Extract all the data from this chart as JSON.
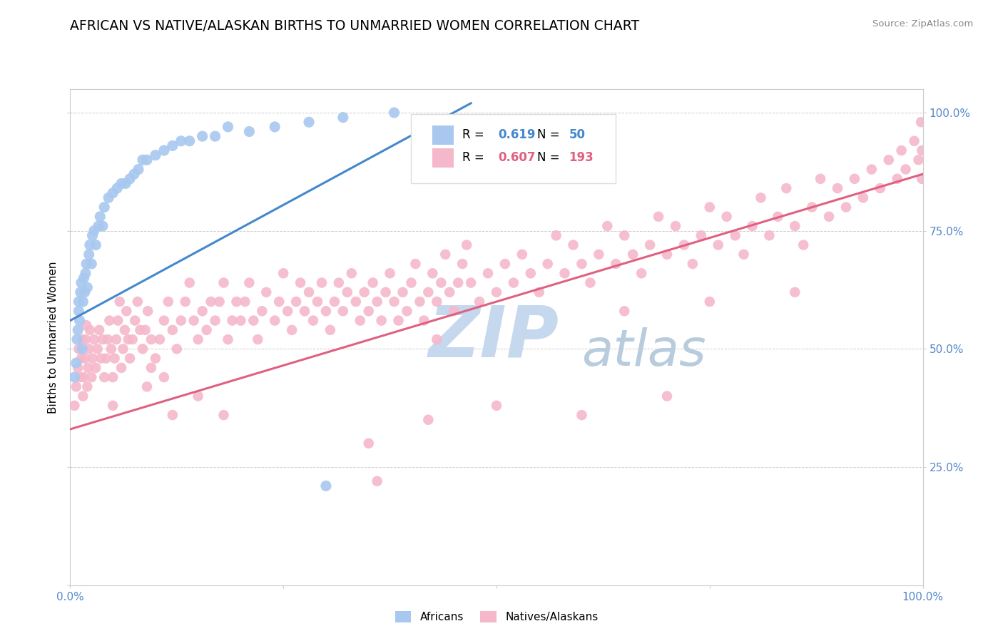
{
  "title": "AFRICAN VS NATIVE/ALASKAN BIRTHS TO UNMARRIED WOMEN CORRELATION CHART",
  "source": "Source: ZipAtlas.com",
  "ylabel": "Births to Unmarried Women",
  "xlim": [
    0.0,
    1.0
  ],
  "ylim": [
    0.0,
    1.05
  ],
  "african_R": 0.619,
  "african_N": 50,
  "native_R": 0.607,
  "native_N": 193,
  "african_color": "#a8c8f0",
  "native_color": "#f5b8cb",
  "african_line_color": "#4488cc",
  "native_line_color": "#e06080",
  "watermark_color": "#c5d8ee",
  "title_fontsize": 13.5,
  "label_fontsize": 11,
  "legend_fontsize": 12,
  "african_line_x": [
    0.0,
    0.47
  ],
  "african_line_y": [
    0.56,
    1.02
  ],
  "native_line_x": [
    0.0,
    1.0
  ],
  "native_line_y": [
    0.33,
    0.87
  ],
  "african_points": [
    [
      0.005,
      0.44
    ],
    [
      0.007,
      0.47
    ],
    [
      0.008,
      0.52
    ],
    [
      0.009,
      0.54
    ],
    [
      0.01,
      0.58
    ],
    [
      0.01,
      0.6
    ],
    [
      0.011,
      0.56
    ],
    [
      0.012,
      0.62
    ],
    [
      0.013,
      0.64
    ],
    [
      0.014,
      0.5
    ],
    [
      0.015,
      0.6
    ],
    [
      0.016,
      0.65
    ],
    [
      0.017,
      0.62
    ],
    [
      0.018,
      0.66
    ],
    [
      0.019,
      0.68
    ],
    [
      0.02,
      0.63
    ],
    [
      0.022,
      0.7
    ],
    [
      0.023,
      0.72
    ],
    [
      0.025,
      0.68
    ],
    [
      0.026,
      0.74
    ],
    [
      0.028,
      0.75
    ],
    [
      0.03,
      0.72
    ],
    [
      0.033,
      0.76
    ],
    [
      0.035,
      0.78
    ],
    [
      0.038,
      0.76
    ],
    [
      0.04,
      0.8
    ],
    [
      0.045,
      0.82
    ],
    [
      0.05,
      0.83
    ],
    [
      0.055,
      0.84
    ],
    [
      0.06,
      0.85
    ],
    [
      0.065,
      0.85
    ],
    [
      0.07,
      0.86
    ],
    [
      0.075,
      0.87
    ],
    [
      0.08,
      0.88
    ],
    [
      0.085,
      0.9
    ],
    [
      0.09,
      0.9
    ],
    [
      0.1,
      0.91
    ],
    [
      0.11,
      0.92
    ],
    [
      0.12,
      0.93
    ],
    [
      0.13,
      0.94
    ],
    [
      0.14,
      0.94
    ],
    [
      0.155,
      0.95
    ],
    [
      0.17,
      0.95
    ],
    [
      0.185,
      0.97
    ],
    [
      0.21,
      0.96
    ],
    [
      0.24,
      0.97
    ],
    [
      0.28,
      0.98
    ],
    [
      0.32,
      0.99
    ],
    [
      0.38,
      1.0
    ],
    [
      0.3,
      0.21
    ]
  ],
  "native_points": [
    [
      0.005,
      0.38
    ],
    [
      0.007,
      0.42
    ],
    [
      0.009,
      0.46
    ],
    [
      0.01,
      0.5
    ],
    [
      0.012,
      0.44
    ],
    [
      0.013,
      0.48
    ],
    [
      0.014,
      0.52
    ],
    [
      0.015,
      0.4
    ],
    [
      0.016,
      0.44
    ],
    [
      0.017,
      0.48
    ],
    [
      0.018,
      0.52
    ],
    [
      0.019,
      0.55
    ],
    [
      0.02,
      0.42
    ],
    [
      0.021,
      0.46
    ],
    [
      0.022,
      0.5
    ],
    [
      0.023,
      0.54
    ],
    [
      0.025,
      0.44
    ],
    [
      0.026,
      0.48
    ],
    [
      0.028,
      0.52
    ],
    [
      0.03,
      0.46
    ],
    [
      0.032,
      0.5
    ],
    [
      0.034,
      0.54
    ],
    [
      0.036,
      0.48
    ],
    [
      0.038,
      0.52
    ],
    [
      0.04,
      0.44
    ],
    [
      0.042,
      0.48
    ],
    [
      0.044,
      0.52
    ],
    [
      0.046,
      0.56
    ],
    [
      0.048,
      0.5
    ],
    [
      0.05,
      0.44
    ],
    [
      0.052,
      0.48
    ],
    [
      0.054,
      0.52
    ],
    [
      0.056,
      0.56
    ],
    [
      0.058,
      0.6
    ],
    [
      0.06,
      0.46
    ],
    [
      0.062,
      0.5
    ],
    [
      0.064,
      0.54
    ],
    [
      0.066,
      0.58
    ],
    [
      0.068,
      0.52
    ],
    [
      0.07,
      0.48
    ],
    [
      0.073,
      0.52
    ],
    [
      0.076,
      0.56
    ],
    [
      0.079,
      0.6
    ],
    [
      0.082,
      0.54
    ],
    [
      0.085,
      0.5
    ],
    [
      0.088,
      0.54
    ],
    [
      0.091,
      0.58
    ],
    [
      0.095,
      0.52
    ],
    [
      0.1,
      0.48
    ],
    [
      0.105,
      0.52
    ],
    [
      0.11,
      0.56
    ],
    [
      0.115,
      0.6
    ],
    [
      0.12,
      0.54
    ],
    [
      0.125,
      0.5
    ],
    [
      0.13,
      0.56
    ],
    [
      0.135,
      0.6
    ],
    [
      0.14,
      0.64
    ],
    [
      0.145,
      0.56
    ],
    [
      0.15,
      0.52
    ],
    [
      0.155,
      0.58
    ],
    [
      0.16,
      0.54
    ],
    [
      0.165,
      0.6
    ],
    [
      0.17,
      0.56
    ],
    [
      0.175,
      0.6
    ],
    [
      0.18,
      0.64
    ],
    [
      0.185,
      0.52
    ],
    [
      0.19,
      0.56
    ],
    [
      0.195,
      0.6
    ],
    [
      0.2,
      0.56
    ],
    [
      0.205,
      0.6
    ],
    [
      0.21,
      0.64
    ],
    [
      0.215,
      0.56
    ],
    [
      0.22,
      0.52
    ],
    [
      0.225,
      0.58
    ],
    [
      0.23,
      0.62
    ],
    [
      0.24,
      0.56
    ],
    [
      0.245,
      0.6
    ],
    [
      0.25,
      0.66
    ],
    [
      0.255,
      0.58
    ],
    [
      0.26,
      0.54
    ],
    [
      0.265,
      0.6
    ],
    [
      0.27,
      0.64
    ],
    [
      0.275,
      0.58
    ],
    [
      0.28,
      0.62
    ],
    [
      0.285,
      0.56
    ],
    [
      0.29,
      0.6
    ],
    [
      0.295,
      0.64
    ],
    [
      0.3,
      0.58
    ],
    [
      0.305,
      0.54
    ],
    [
      0.31,
      0.6
    ],
    [
      0.315,
      0.64
    ],
    [
      0.32,
      0.58
    ],
    [
      0.325,
      0.62
    ],
    [
      0.33,
      0.66
    ],
    [
      0.335,
      0.6
    ],
    [
      0.34,
      0.56
    ],
    [
      0.345,
      0.62
    ],
    [
      0.35,
      0.58
    ],
    [
      0.355,
      0.64
    ],
    [
      0.36,
      0.6
    ],
    [
      0.365,
      0.56
    ],
    [
      0.37,
      0.62
    ],
    [
      0.375,
      0.66
    ],
    [
      0.38,
      0.6
    ],
    [
      0.385,
      0.56
    ],
    [
      0.39,
      0.62
    ],
    [
      0.395,
      0.58
    ],
    [
      0.4,
      0.64
    ],
    [
      0.405,
      0.68
    ],
    [
      0.41,
      0.6
    ],
    [
      0.415,
      0.56
    ],
    [
      0.42,
      0.62
    ],
    [
      0.425,
      0.66
    ],
    [
      0.43,
      0.6
    ],
    [
      0.435,
      0.64
    ],
    [
      0.44,
      0.7
    ],
    [
      0.445,
      0.62
    ],
    [
      0.45,
      0.58
    ],
    [
      0.455,
      0.64
    ],
    [
      0.46,
      0.68
    ],
    [
      0.465,
      0.72
    ],
    [
      0.47,
      0.64
    ],
    [
      0.48,
      0.6
    ],
    [
      0.49,
      0.66
    ],
    [
      0.5,
      0.62
    ],
    [
      0.51,
      0.68
    ],
    [
      0.52,
      0.64
    ],
    [
      0.53,
      0.7
    ],
    [
      0.54,
      0.66
    ],
    [
      0.55,
      0.62
    ],
    [
      0.56,
      0.68
    ],
    [
      0.57,
      0.74
    ],
    [
      0.58,
      0.66
    ],
    [
      0.59,
      0.72
    ],
    [
      0.6,
      0.68
    ],
    [
      0.61,
      0.64
    ],
    [
      0.62,
      0.7
    ],
    [
      0.63,
      0.76
    ],
    [
      0.64,
      0.68
    ],
    [
      0.65,
      0.74
    ],
    [
      0.66,
      0.7
    ],
    [
      0.67,
      0.66
    ],
    [
      0.68,
      0.72
    ],
    [
      0.69,
      0.78
    ],
    [
      0.7,
      0.7
    ],
    [
      0.71,
      0.76
    ],
    [
      0.72,
      0.72
    ],
    [
      0.73,
      0.68
    ],
    [
      0.74,
      0.74
    ],
    [
      0.75,
      0.8
    ],
    [
      0.76,
      0.72
    ],
    [
      0.77,
      0.78
    ],
    [
      0.78,
      0.74
    ],
    [
      0.79,
      0.7
    ],
    [
      0.8,
      0.76
    ],
    [
      0.81,
      0.82
    ],
    [
      0.82,
      0.74
    ],
    [
      0.83,
      0.78
    ],
    [
      0.84,
      0.84
    ],
    [
      0.85,
      0.76
    ],
    [
      0.86,
      0.72
    ],
    [
      0.87,
      0.8
    ],
    [
      0.88,
      0.86
    ],
    [
      0.89,
      0.78
    ],
    [
      0.9,
      0.84
    ],
    [
      0.91,
      0.8
    ],
    [
      0.92,
      0.86
    ],
    [
      0.93,
      0.82
    ],
    [
      0.94,
      0.88
    ],
    [
      0.95,
      0.84
    ],
    [
      0.96,
      0.9
    ],
    [
      0.97,
      0.86
    ],
    [
      0.975,
      0.92
    ],
    [
      0.98,
      0.88
    ],
    [
      0.99,
      0.94
    ],
    [
      0.995,
      0.9
    ],
    [
      0.999,
      0.86
    ],
    [
      0.999,
      0.92
    ],
    [
      0.998,
      0.98
    ],
    [
      0.12,
      0.36
    ],
    [
      0.15,
      0.4
    ],
    [
      0.18,
      0.36
    ],
    [
      0.35,
      0.3
    ],
    [
      0.36,
      0.22
    ],
    [
      0.42,
      0.35
    ],
    [
      0.5,
      0.38
    ],
    [
      0.6,
      0.36
    ],
    [
      0.7,
      0.4
    ],
    [
      0.11,
      0.44
    ],
    [
      0.095,
      0.46
    ],
    [
      0.43,
      0.52
    ],
    [
      0.65,
      0.58
    ],
    [
      0.75,
      0.6
    ],
    [
      0.85,
      0.62
    ],
    [
      0.05,
      0.38
    ],
    [
      0.09,
      0.42
    ]
  ]
}
